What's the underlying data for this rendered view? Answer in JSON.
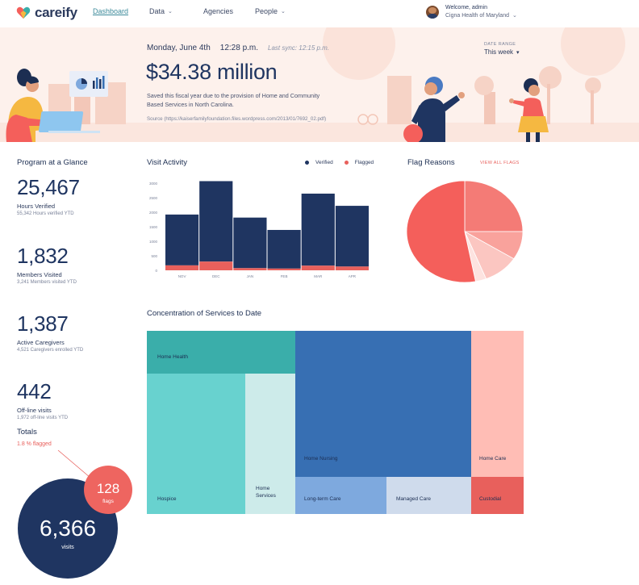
{
  "app": {
    "name": "careify",
    "nav": [
      {
        "label": "Dashboard",
        "active": true,
        "has_menu": false
      },
      {
        "label": "Data",
        "active": false,
        "has_menu": true
      },
      {
        "label": "Agencies",
        "active": false,
        "has_menu": false
      },
      {
        "label": "People",
        "active": false,
        "has_menu": true
      }
    ],
    "user": {
      "greeting": "Welcome, admin",
      "org": "Cigna Health of Maryland"
    }
  },
  "hero": {
    "date": "Monday, June 4th",
    "time": "12:28 p.m.",
    "sync": "Last sync: 12:15 p.m.",
    "amount": "$34.38 million",
    "description": "Saved this fiscal year due to the provision of Home and Community Based Services in North Carolina.",
    "source": "Source (https://kaiserfamilyfoundation.files.wordpress.com/2013/01/7692_02.pdf)",
    "range_label": "DATE RANGE",
    "range_value": "This week"
  },
  "glance": {
    "title": "Program at a Glance",
    "stats": [
      {
        "value": "25,467",
        "label": "Hours Verified",
        "sub": "55,342 Hours verified YTD"
      },
      {
        "value": "1,832",
        "label": "Members Visited",
        "sub": "3,241 Members visited YTD"
      },
      {
        "value": "1,387",
        "label": "Active Caregivers",
        "sub": "4,521 Caregivers enrolled YTD"
      },
      {
        "value": "442",
        "label": "Off-line visits",
        "sub": "1,972 off-line visits YTD"
      }
    ],
    "totals_title": "Totals",
    "totals_flagged": "1.8 % flagged",
    "flags_value": "128",
    "flags_label": "flags",
    "visits_value": "6,366",
    "visits_label": "visits"
  },
  "visit_activity": {
    "title": "Visit Activity",
    "legend": {
      "verified": "Verified",
      "flagged": "Flagged"
    }
  },
  "flag_reasons": {
    "title": "Flag Reasons",
    "link": "VIEW ALL FLAGS"
  },
  "treemap": {
    "title": "Concentration of Services to Date",
    "cells": [
      "Home Health",
      "Hospice",
      "Home Services",
      "Home Nursing",
      "Long-term Care",
      "Managed Care",
      "Home Care",
      "Custodial"
    ]
  },
  "colors": {
    "navy": "#1f3561",
    "flag": "#e8605c",
    "teal": "#3aaeaa",
    "light_teal": "#68d2cf",
    "pale_teal": "#cdebea",
    "blue": "#376fb3",
    "light_blue": "#7ea9de",
    "pale_blue": "#cfdbec",
    "pink": "#ffbdb5",
    "red": "#e8605c"
  },
  "chart_data": [
    {
      "type": "bar",
      "categories": [
        "NOV",
        "DEC",
        "JAN",
        "FEB",
        "MAR",
        "APR"
      ],
      "series": [
        {
          "name": "Verified",
          "values": [
            1750,
            2770,
            1740,
            1330,
            2480,
            2090
          ]
        },
        {
          "name": "Flagged",
          "values": [
            170,
            300,
            75,
            60,
            160,
            130
          ]
        }
      ],
      "stacked": true,
      "yticks": [
        "0",
        "500",
        "1000",
        "1500",
        "2000",
        "2500",
        "3000"
      ],
      "ylim": [
        0,
        3000
      ],
      "legend": "top-right"
    },
    {
      "type": "pie",
      "slices": [
        {
          "value": 25,
          "color": "#f47b76"
        },
        {
          "value": 9,
          "color": "#f9a29c"
        },
        {
          "value": 10,
          "color": "#fbc6c1"
        },
        {
          "value": 3,
          "color": "#fde3e0"
        },
        {
          "value": 53,
          "color": "#f45f5b"
        }
      ]
    }
  ]
}
